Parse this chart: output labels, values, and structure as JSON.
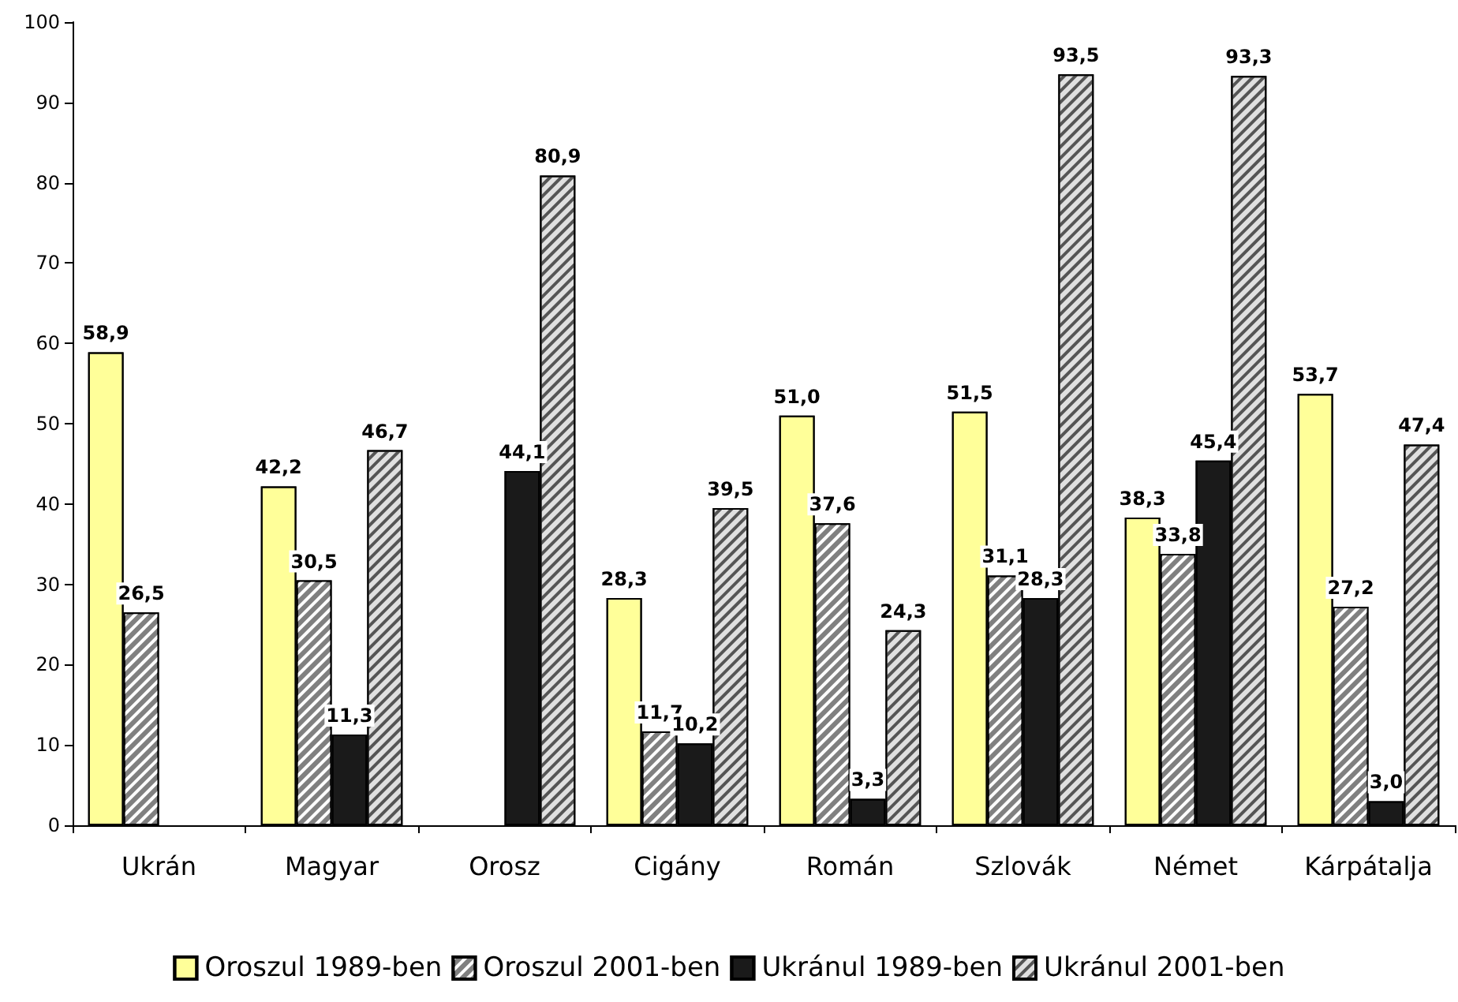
{
  "chart_data": {
    "type": "bar",
    "categories": [
      "Ukrán",
      "Magyar",
      "Orosz",
      "Cigány",
      "Román",
      "Szlovák",
      "Német",
      "Kárpátalja"
    ],
    "series": [
      {
        "name": "Oroszul 1989-ben",
        "color": "#ffff99",
        "values": [
          58.9,
          42.2,
          null,
          28.3,
          51.0,
          51.5,
          38.3,
          53.7
        ],
        "value_labels": [
          "58,9",
          "42,2",
          null,
          "28,3",
          "51,0",
          "51,5",
          "38,3",
          "53,7"
        ]
      },
      {
        "name": "Oroszul 2001-ben",
        "color": "#808080",
        "values": [
          26.5,
          30.5,
          null,
          11.7,
          37.6,
          31.1,
          33.8,
          27.2
        ],
        "value_labels": [
          "26,5",
          "30,5",
          null,
          "11,7",
          "37,6",
          "31,1",
          "33,8",
          "27,2"
        ]
      },
      {
        "name": "Ukránul 1989-ben",
        "color": "#1a1a1a",
        "values": [
          null,
          11.3,
          44.1,
          10.2,
          3.3,
          28.3,
          45.4,
          3.0
        ],
        "value_labels": [
          null,
          "11,3",
          "44,1",
          "10,2",
          "3,3",
          "28,3",
          "45,4",
          "3,0"
        ]
      },
      {
        "name": "Ukránul 2001-ben",
        "color": "#e0e0e0",
        "values": [
          null,
          46.7,
          80.9,
          39.5,
          24.3,
          93.5,
          93.3,
          47.4
        ],
        "value_labels": [
          null,
          "46,7",
          "80,9",
          "39,5",
          "24,3",
          "93,5",
          "93,3",
          "47,4"
        ]
      }
    ],
    "ylim": [
      0,
      100
    ],
    "yticks": [
      0,
      10,
      20,
      30,
      40,
      50,
      60,
      70,
      80,
      90,
      100
    ],
    "grid": false,
    "legend": "bottom"
  }
}
